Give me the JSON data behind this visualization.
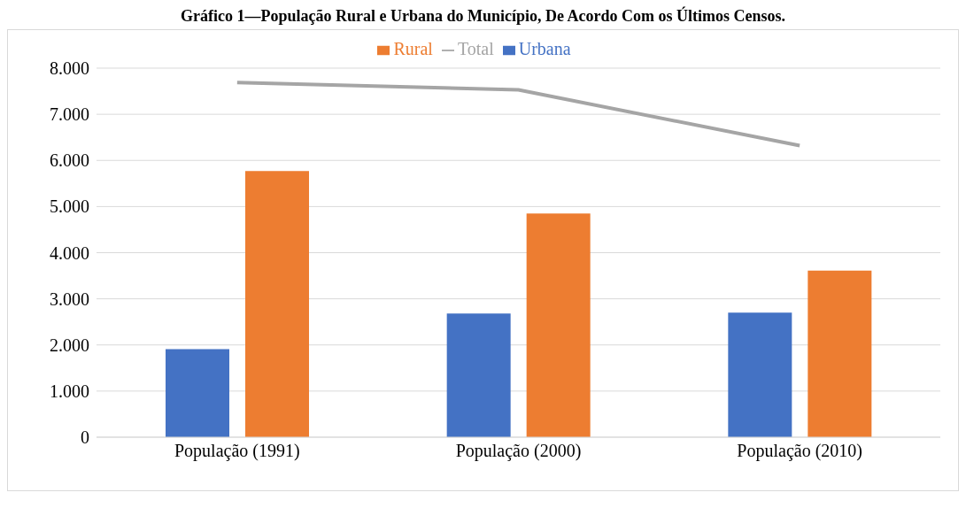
{
  "chart_data": {
    "type": "bar",
    "title": "Gráfico 1—População Rural e Urbana do Município, De Acordo Com os Últimos Censos.",
    "categories": [
      "População (1991)",
      "População (2000)",
      "População (2010)"
    ],
    "series": [
      {
        "name": "Urbana",
        "color": "#4472c4",
        "values": [
          1910,
          2680,
          2700
        ]
      },
      {
        "name": "Rural",
        "color": "#ed7d31",
        "values": [
          5770,
          4850,
          3610
        ]
      },
      {
        "name": "Total",
        "type": "line",
        "color": "#a5a5a5",
        "values": [
          7690,
          7530,
          6320
        ]
      }
    ],
    "ylim": [
      0,
      8000
    ],
    "yticks": [
      {
        "value": 0,
        "label": "0"
      },
      {
        "value": 1000,
        "label": "1.000"
      },
      {
        "value": 2000,
        "label": "2.000"
      },
      {
        "value": 3000,
        "label": "3.000"
      },
      {
        "value": 4000,
        "label": "4.000"
      },
      {
        "value": 5000,
        "label": "5.000"
      },
      {
        "value": 6000,
        "label": "6.000"
      },
      {
        "value": 7000,
        "label": "7.000"
      },
      {
        "value": 8000,
        "label": "8.000"
      }
    ],
    "grid": "y",
    "legend": "top",
    "marker": "none"
  }
}
